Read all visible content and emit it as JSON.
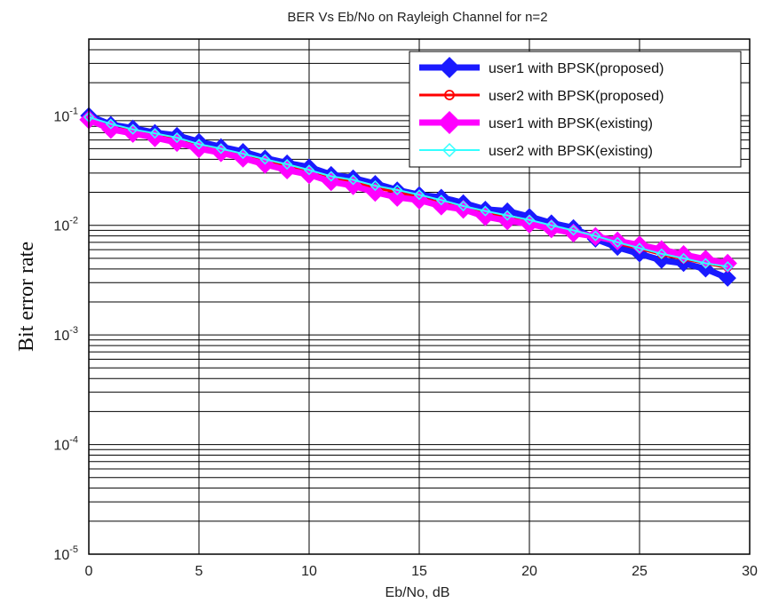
{
  "chart_data": {
    "type": "line",
    "title": "BER Vs Eb/No on Rayleigh Channel for n=2",
    "xlabel": "Eb/No, dB",
    "ylabel": "Bit error rate",
    "xlim": [
      0,
      30
    ],
    "ylim": [
      1e-05,
      0.5
    ],
    "yscale": "log",
    "grid": true,
    "legend_position": "top-right",
    "x_ticks": [
      "0",
      "5",
      "10",
      "15",
      "20",
      "25",
      "30"
    ],
    "y_ticks": [
      {
        "base": "10",
        "exp": "-1",
        "value": 0.1
      },
      {
        "base": "10",
        "exp": "-2",
        "value": 0.01
      },
      {
        "base": "10",
        "exp": "-3",
        "value": 0.001
      },
      {
        "base": "10",
        "exp": "-4",
        "value": 0.0001
      },
      {
        "base": "10",
        "exp": "-5",
        "value": 1e-05
      }
    ],
    "x": [
      0,
      1,
      2,
      3,
      4,
      5,
      6,
      7,
      8,
      9,
      10,
      11,
      12,
      13,
      14,
      15,
      16,
      17,
      18,
      19,
      20,
      21,
      22,
      23,
      24,
      25,
      26,
      27,
      28,
      29
    ],
    "series": [
      {
        "name": "user1 with BPSK(proposed)",
        "color": "#1a1aff",
        "marker": "diamond",
        "values": [
          0.1,
          0.083,
          0.077,
          0.07,
          0.066,
          0.058,
          0.052,
          0.047,
          0.041,
          0.037,
          0.034,
          0.029,
          0.027,
          0.024,
          0.021,
          0.019,
          0.018,
          0.016,
          0.014,
          0.0135,
          0.012,
          0.0105,
          0.0095,
          0.0075,
          0.0063,
          0.0055,
          0.0048,
          0.0045,
          0.004,
          0.0033
        ]
      },
      {
        "name": "user2 with BPSK(proposed)",
        "color": "#ff0000",
        "marker": "circle",
        "values": [
          0.096,
          0.078,
          0.073,
          0.067,
          0.061,
          0.054,
          0.049,
          0.044,
          0.039,
          0.035,
          0.031,
          0.027,
          0.025,
          0.022,
          0.02,
          0.018,
          0.016,
          0.015,
          0.013,
          0.012,
          0.011,
          0.0098,
          0.0088,
          0.0078,
          0.0068,
          0.0061,
          0.0054,
          0.0049,
          0.0045,
          0.0041
        ]
      },
      {
        "name": "user1 with BPSK(existing)",
        "color": "#ff00ff",
        "marker": "diamond",
        "values": [
          0.092,
          0.075,
          0.069,
          0.063,
          0.057,
          0.05,
          0.046,
          0.041,
          0.036,
          0.032,
          0.029,
          0.025,
          0.023,
          0.02,
          0.018,
          0.017,
          0.015,
          0.014,
          0.012,
          0.011,
          0.0103,
          0.0093,
          0.0085,
          0.0079,
          0.0072,
          0.0066,
          0.006,
          0.0054,
          0.0049,
          0.0045
        ]
      },
      {
        "name": "user2 with BPSK(existing)",
        "color": "#33ffff",
        "marker": "diamond-open",
        "values": [
          0.097,
          0.084,
          0.075,
          0.069,
          0.063,
          0.055,
          0.05,
          0.045,
          0.04,
          0.036,
          0.032,
          0.028,
          0.026,
          0.023,
          0.021,
          0.019,
          0.017,
          0.015,
          0.0135,
          0.0123,
          0.0112,
          0.01,
          0.009,
          0.008,
          0.007,
          0.0062,
          0.0055,
          0.005,
          0.0045,
          0.0042
        ]
      }
    ]
  }
}
